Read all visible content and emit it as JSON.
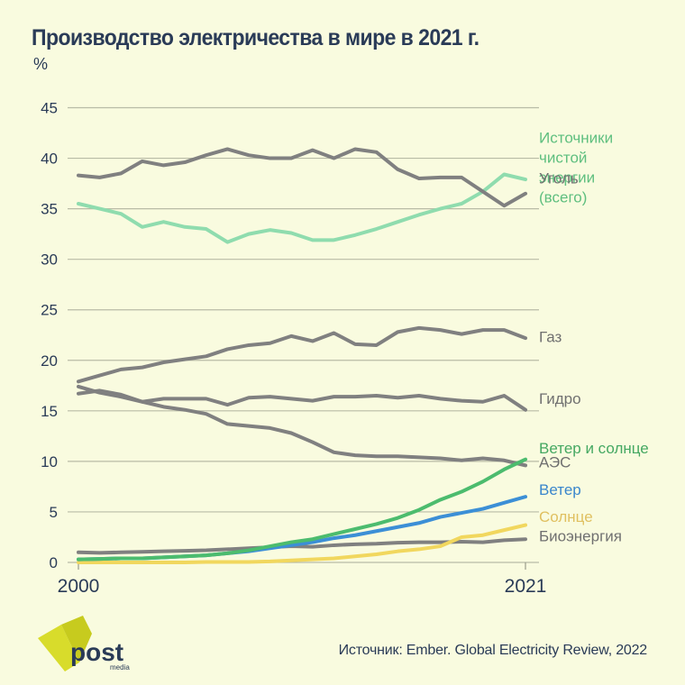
{
  "title": "Производство электричества в мире в 2021 г.",
  "unit": "%",
  "source": "Источник: Ember. Global Electricity Review, 2022",
  "logo": {
    "main": "post",
    "sub": "media",
    "accent": "#d8dc2b",
    "text_color": "#2a3b57"
  },
  "chart_data": {
    "type": "line",
    "title": "Производство электричества в мире в 2021 г.",
    "ylabel": "%",
    "xlabel": "",
    "ylim": [
      0,
      45
    ],
    "yticks": [
      0,
      5,
      10,
      15,
      20,
      25,
      30,
      35,
      40,
      45
    ],
    "xlim": [
      2000,
      2021
    ],
    "xtick_labels": [
      "2000",
      "2021"
    ],
    "grid": true,
    "legend": "right-end labels",
    "x": [
      2000,
      2001,
      2002,
      2003,
      2004,
      2005,
      2006,
      2007,
      2008,
      2009,
      2010,
      2011,
      2012,
      2013,
      2014,
      2015,
      2016,
      2017,
      2018,
      2019,
      2020,
      2021
    ],
    "series": [
      {
        "name": "Источники чистой энергии (всего)",
        "label_lines": [
          "Источники",
          "чистой",
          "энергии",
          "(всего)"
        ],
        "color": "#8fdcae",
        "label_color": "#5fbf7f",
        "values": [
          35.5,
          35.0,
          34.5,
          33.2,
          33.7,
          33.2,
          33.0,
          31.7,
          32.5,
          32.9,
          32.6,
          31.9,
          31.9,
          32.4,
          33.0,
          33.7,
          34.4,
          35.0,
          35.5,
          36.7,
          38.4,
          37.9
        ]
      },
      {
        "name": "Уголь",
        "label_lines": [
          "Уголь"
        ],
        "color": "#808080",
        "label_color": "#707070",
        "values": [
          38.3,
          38.1,
          38.5,
          39.7,
          39.3,
          39.6,
          40.3,
          40.9,
          40.3,
          40.0,
          40.0,
          40.8,
          40.0,
          40.9,
          40.6,
          38.9,
          38.0,
          38.1,
          38.1,
          36.7,
          35.3,
          36.5
        ]
      },
      {
        "name": "Газ",
        "label_lines": [
          "Газ"
        ],
        "color": "#808080",
        "label_color": "#707070",
        "values": [
          17.9,
          18.5,
          19.1,
          19.3,
          19.8,
          20.1,
          20.4,
          21.1,
          21.5,
          21.7,
          22.4,
          21.9,
          22.7,
          21.6,
          21.5,
          22.8,
          23.2,
          23.0,
          22.6,
          23.0,
          23.0,
          22.2
        ]
      },
      {
        "name": "Гидро",
        "label_lines": [
          "Гидро"
        ],
        "color": "#808080",
        "label_color": "#707070",
        "values": [
          16.7,
          17.0,
          16.6,
          15.9,
          16.2,
          16.2,
          16.2,
          15.6,
          16.3,
          16.4,
          16.2,
          16.0,
          16.4,
          16.4,
          16.5,
          16.3,
          16.5,
          16.2,
          16.0,
          15.9,
          16.5,
          15.1
        ]
      },
      {
        "name": "АЭС",
        "label_lines": [
          "АЭС"
        ],
        "color": "#808080",
        "label_color": "#707070",
        "values": [
          17.4,
          16.8,
          16.4,
          15.9,
          15.4,
          15.1,
          14.7,
          13.7,
          13.5,
          13.3,
          12.8,
          11.9,
          10.9,
          10.6,
          10.5,
          10.5,
          10.4,
          10.3,
          10.1,
          10.3,
          10.1,
          9.6
        ]
      },
      {
        "name": "Ветер и солнце",
        "label_lines": [
          "Ветер и солнце"
        ],
        "color": "#4cbc6e",
        "label_color": "#45a862",
        "values": [
          0.3,
          0.35,
          0.4,
          0.4,
          0.5,
          0.6,
          0.7,
          0.9,
          1.2,
          1.6,
          2.0,
          2.3,
          2.8,
          3.3,
          3.8,
          4.4,
          5.2,
          6.2,
          7.0,
          8.0,
          9.2,
          10.2
        ]
      },
      {
        "name": "Ветер",
        "label_lines": [
          "Ветер"
        ],
        "color": "#3c8fd6",
        "label_color": "#3a86cc",
        "values": [
          0.3,
          0.35,
          0.4,
          0.4,
          0.5,
          0.6,
          0.7,
          0.9,
          1.1,
          1.4,
          1.7,
          2.0,
          2.4,
          2.7,
          3.1,
          3.5,
          3.9,
          4.5,
          4.9,
          5.3,
          5.9,
          6.5
        ]
      },
      {
        "name": "Солнце",
        "label_lines": [
          "Солнце"
        ],
        "color": "#f1d75e",
        "label_color": "#e0c060",
        "values": [
          0.0,
          0.0,
          0.0,
          0.0,
          0.0,
          0.0,
          0.05,
          0.05,
          0.05,
          0.1,
          0.2,
          0.3,
          0.4,
          0.6,
          0.8,
          1.1,
          1.3,
          1.6,
          2.5,
          2.7,
          3.2,
          3.7
        ]
      },
      {
        "name": "Биоэнергия",
        "label_lines": [
          "Биоэнергия"
        ],
        "color": "#808080",
        "label_color": "#707070",
        "values": [
          1.0,
          0.95,
          1.0,
          1.05,
          1.1,
          1.15,
          1.2,
          1.3,
          1.4,
          1.5,
          1.6,
          1.55,
          1.7,
          1.8,
          1.85,
          1.95,
          2.0,
          2.0,
          2.05,
          2.0,
          2.2,
          2.3
        ]
      }
    ],
    "label_positions_data_y": [
      41.5,
      37.5,
      21.8,
      15.7,
      9.4,
      10.8,
      6.7,
      4.0,
      2.1
    ]
  }
}
